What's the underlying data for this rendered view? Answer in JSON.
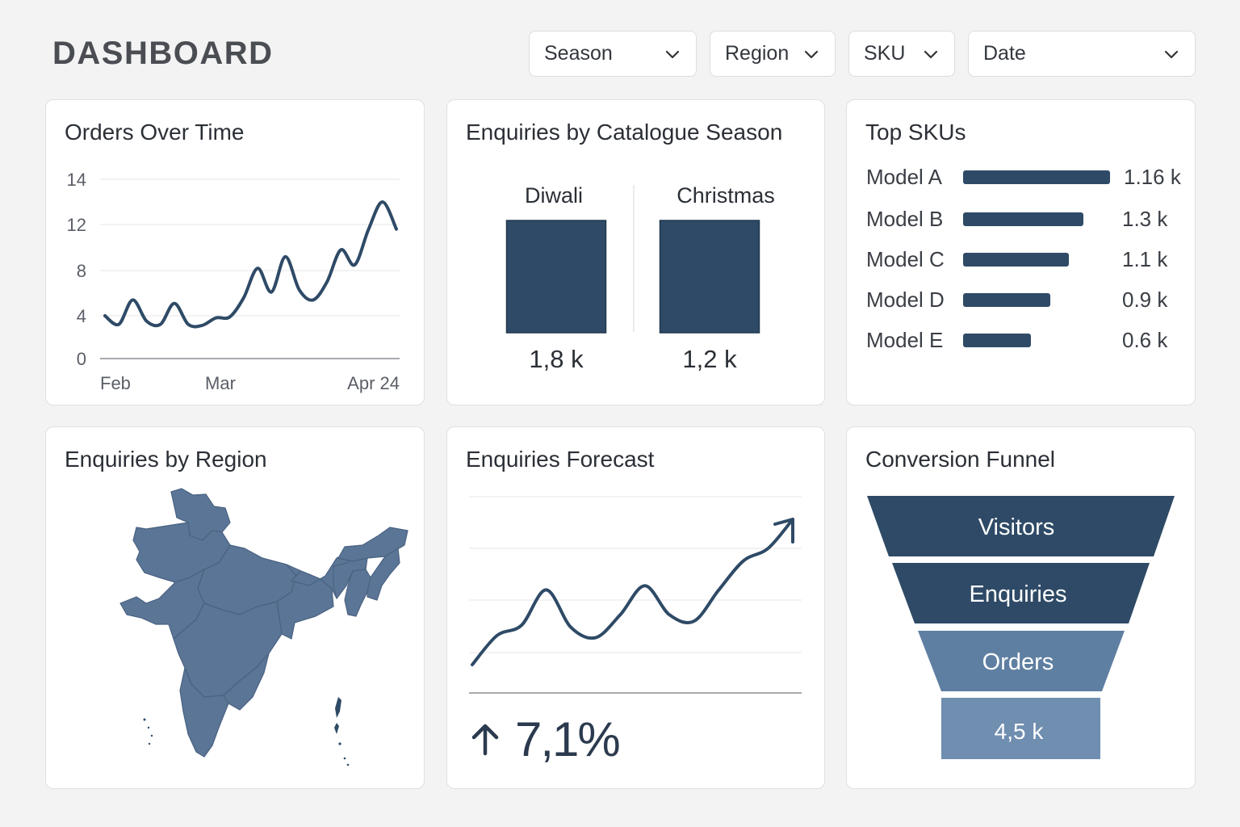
{
  "header": {
    "title": "DASHBOARD"
  },
  "filters": [
    {
      "label": "Season"
    },
    {
      "label": "Region"
    },
    {
      "label": "SKU"
    },
    {
      "label": "Date"
    }
  ],
  "colors": {
    "primary": "#2e4a66",
    "map_fill": "#5b7596",
    "funnel_light": "#5f7fa2",
    "funnel_lighter": "#6f8eb0"
  },
  "cards": {
    "orders_over_time": {
      "title": "Orders Over Time"
    },
    "enquiries_by_season": {
      "title": "Enquiries by Catalogue Season"
    },
    "top_skus": {
      "title": "Top SKUs"
    },
    "enquiries_by_region": {
      "title": "Enquiries by Region"
    },
    "enquiries_forecast": {
      "title": "Enquiries Forecast",
      "change_value": "7,1%",
      "change_icon": "arrow-up-icon"
    },
    "conversion_funnel": {
      "title": "Conversion Funnel",
      "stages": [
        {
          "label": "Visitors"
        },
        {
          "label": "Enquiries"
        },
        {
          "label": "Orders"
        },
        {
          "label": "4,5 k"
        }
      ]
    }
  },
  "chart_data": [
    {
      "type": "line",
      "title": "Orders Over Time",
      "x_ticks": [
        "Feb",
        "Mar",
        "Apr 24"
      ],
      "y_ticks": [
        "0",
        "4",
        "8",
        "12",
        "14"
      ],
      "ylim": [
        0,
        14
      ],
      "grid": true,
      "series": [
        {
          "values": [
            4,
            3.2,
            5.4,
            3.5,
            3.2,
            5.1,
            3.2,
            3.1,
            3.8,
            3.9,
            5.6,
            8.2,
            6.1,
            9.2,
            6.3,
            5.4,
            7,
            9.8,
            8.5,
            11.6,
            13,
            11.6
          ]
        }
      ]
    },
    {
      "type": "bar",
      "title": "Enquiries by Catalogue Season",
      "categories": [
        "Diwali",
        "Christmas"
      ],
      "values": [
        1800,
        1200
      ],
      "value_labels": [
        "1,8 k",
        "1,2 k"
      ]
    },
    {
      "type": "bar",
      "title": "Top SKUs",
      "orientation": "horizontal",
      "categories": [
        "Model A",
        "Model B",
        "Model C",
        "Model D",
        "Model E"
      ],
      "values": [
        1160,
        1300,
        1100,
        900,
        600
      ],
      "value_labels": [
        "1.16 k",
        "1.3 k",
        "1.1 k",
        "0.9 k",
        "0.6 k"
      ]
    },
    {
      "type": "line",
      "title": "Enquiries Forecast",
      "grid": true,
      "series": [
        {
          "values": [
            1.0,
            2.4,
            2.9,
            4.6,
            2.8,
            2.3,
            3.4,
            4.8,
            3.4,
            3.1,
            4.6,
            6.0,
            6.6,
            8.0
          ]
        }
      ]
    }
  ]
}
